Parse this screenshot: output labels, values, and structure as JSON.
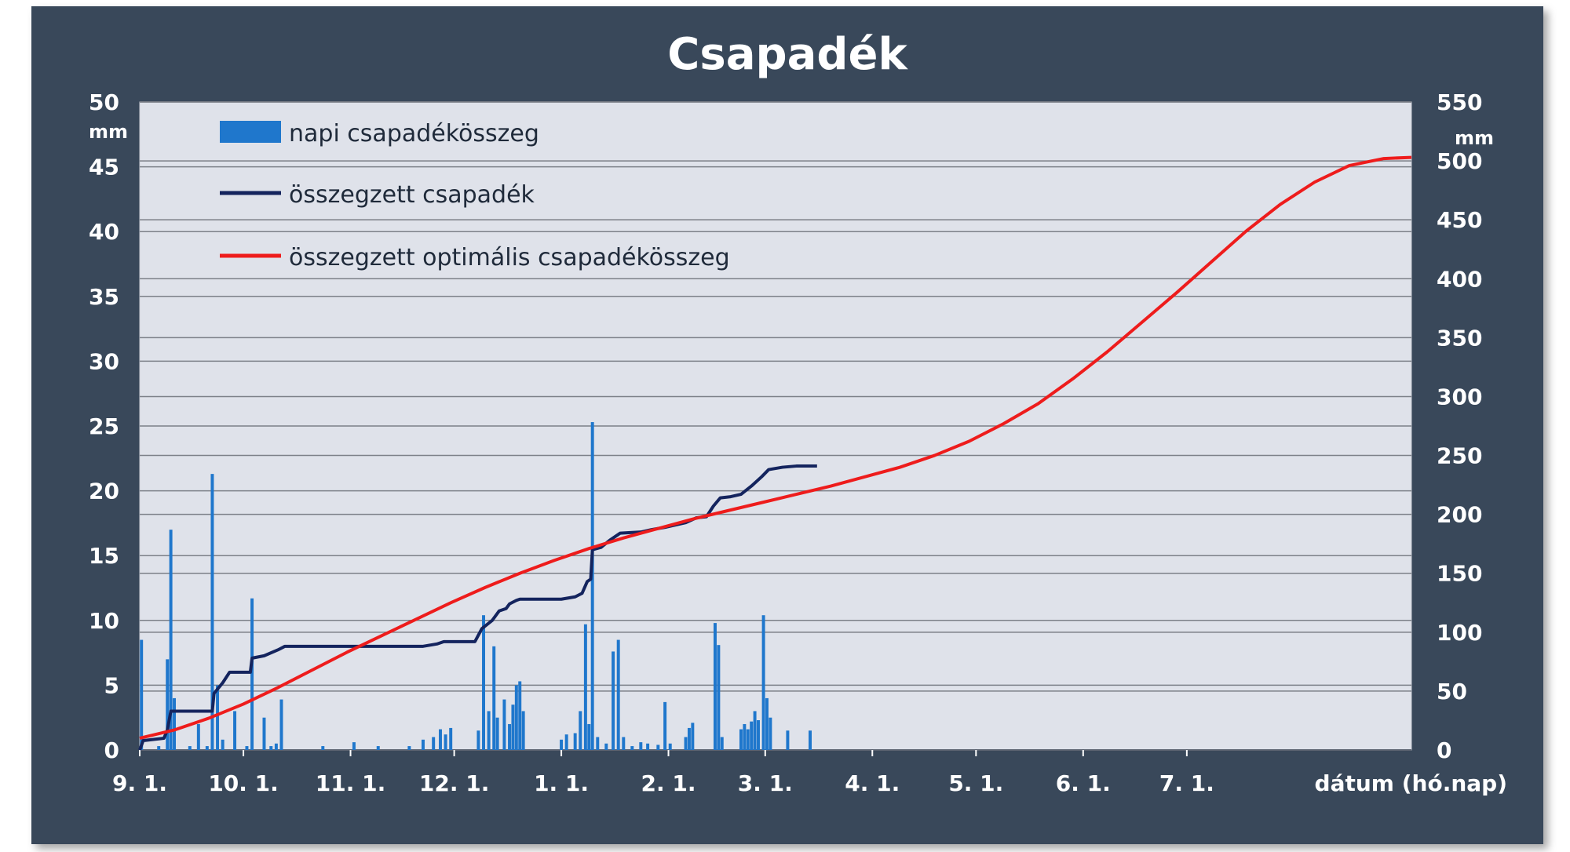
{
  "chart_data": {
    "type": "bar+line",
    "title": "Csapadék",
    "xlabel": "dátum (hó.nap)",
    "y_left": {
      "unit": "mm",
      "range": [
        0,
        50
      ],
      "ticks": [
        "0",
        "5",
        "10",
        "15",
        "20",
        "25",
        "30",
        "35",
        "40",
        "45",
        "50"
      ]
    },
    "y_right": {
      "unit": "mm",
      "range": [
        0,
        550
      ],
      "ticks": [
        "0",
        "50",
        "100",
        "150",
        "200",
        "250",
        "300",
        "350",
        "400",
        "450",
        "500",
        "550"
      ]
    },
    "x_ticks": [
      "9. 1.",
      "10. 1.",
      "11. 1.",
      "12. 1.",
      "1. 1.",
      "2. 1.",
      "3. 1.",
      "4. 1.",
      "5. 1.",
      "6. 1.",
      "7. 1."
    ],
    "grid": true,
    "legend_placement": "top-left",
    "colors": {
      "frame": "#39485a",
      "plot": "#dfe2ea",
      "bars": "#1f77cc",
      "sum": "#14245e",
      "optimal": "#ee1c1c",
      "grid": "#7c8088"
    },
    "series": [
      {
        "name": "napi csapadékösszeg",
        "type": "bar",
        "axis": "left",
        "points": [
          [
            0.5,
            8.5
          ],
          [
            5.5,
            0.3
          ],
          [
            8,
            7
          ],
          [
            9,
            17
          ],
          [
            10,
            4
          ],
          [
            14.5,
            0.3
          ],
          [
            17,
            2
          ],
          [
            19.5,
            0.3
          ],
          [
            21,
            21.3
          ],
          [
            22.5,
            5
          ],
          [
            24,
            0.8
          ],
          [
            27.5,
            3
          ],
          [
            31,
            0.3
          ],
          [
            32.5,
            11.7
          ],
          [
            36,
            2.5
          ],
          [
            38,
            0.3
          ],
          [
            39.5,
            0.5
          ],
          [
            41,
            3.9
          ],
          [
            53,
            0.3
          ],
          [
            62,
            0.6
          ],
          [
            69,
            0.3
          ],
          [
            78,
            0.3
          ],
          [
            82,
            0.8
          ],
          [
            85,
            1
          ],
          [
            87,
            1.6
          ],
          [
            88.5,
            1.2
          ],
          [
            90,
            1.7
          ],
          [
            98,
            1.5
          ],
          [
            99.5,
            10.4
          ],
          [
            101,
            3
          ],
          [
            102.5,
            8
          ],
          [
            103.5,
            2.5
          ],
          [
            105.5,
            3.9
          ],
          [
            107,
            2
          ],
          [
            108,
            3.5
          ],
          [
            109,
            5
          ],
          [
            110,
            5.3
          ],
          [
            111,
            3
          ],
          [
            122,
            0.8
          ],
          [
            123.5,
            1.2
          ],
          [
            126,
            1.3
          ],
          [
            127.5,
            3
          ],
          [
            129,
            9.7
          ],
          [
            130,
            2
          ],
          [
            131,
            25.3
          ],
          [
            132.5,
            1
          ],
          [
            135,
            0.5
          ],
          [
            137,
            7.6
          ],
          [
            138.5,
            8.5
          ],
          [
            140,
            1
          ],
          [
            142.5,
            0.3
          ],
          [
            145,
            0.6
          ],
          [
            147,
            0.5
          ],
          [
            150,
            0.4
          ],
          [
            152,
            3.7
          ],
          [
            153.5,
            0.5
          ],
          [
            158,
            1
          ],
          [
            159,
            1.7
          ],
          [
            160,
            2.1
          ],
          [
            166.5,
            9.8
          ],
          [
            167.5,
            8.1
          ],
          [
            168.5,
            1
          ],
          [
            174,
            1.6
          ],
          [
            175,
            2
          ],
          [
            176,
            1.6
          ],
          [
            177,
            2.2
          ],
          [
            178,
            3
          ],
          [
            179,
            2.3
          ],
          [
            180.5,
            10.4
          ],
          [
            181.5,
            4
          ],
          [
            182.5,
            2.5
          ],
          [
            187.5,
            1.5
          ],
          [
            194,
            1.5
          ]
        ]
      },
      {
        "name": "összegzett csapadék",
        "type": "line",
        "axis": "right",
        "points": [
          [
            0,
            0
          ],
          [
            1,
            8
          ],
          [
            7,
            10
          ],
          [
            8,
            17
          ],
          [
            9,
            33
          ],
          [
            21,
            33
          ],
          [
            21.5,
            48
          ],
          [
            24,
            57
          ],
          [
            26,
            66
          ],
          [
            32,
            66
          ],
          [
            32.5,
            78
          ],
          [
            36,
            80
          ],
          [
            40,
            85
          ],
          [
            42,
            88
          ],
          [
            82,
            88
          ],
          [
            86,
            90
          ],
          [
            88,
            92
          ],
          [
            97,
            92
          ],
          [
            99,
            103
          ],
          [
            102,
            110
          ],
          [
            104,
            118
          ],
          [
            106,
            120
          ],
          [
            107,
            124
          ],
          [
            109,
            127
          ],
          [
            110,
            128
          ],
          [
            122,
            128
          ],
          [
            126,
            130
          ],
          [
            128,
            133
          ],
          [
            129.5,
            143
          ],
          [
            130.5,
            145
          ],
          [
            131,
            170
          ],
          [
            133.5,
            172
          ],
          [
            136,
            178
          ],
          [
            137.5,
            181
          ],
          [
            139,
            184
          ],
          [
            145,
            185
          ],
          [
            148,
            187
          ],
          [
            152,
            189
          ],
          [
            155,
            191
          ],
          [
            158,
            193
          ],
          [
            161,
            197
          ],
          [
            164,
            198
          ],
          [
            166,
            207
          ],
          [
            168,
            214
          ],
          [
            171,
            215
          ],
          [
            174,
            217
          ],
          [
            177,
            224
          ],
          [
            180,
            232
          ],
          [
            182,
            238
          ],
          [
            186,
            240
          ],
          [
            190,
            241
          ],
          [
            196,
            241
          ]
        ]
      },
      {
        "name": "összegzett optimális  csapadékösszeg",
        "type": "line",
        "axis": "right",
        "points": [
          [
            0,
            10
          ],
          [
            10,
            17
          ],
          [
            20,
            27
          ],
          [
            30,
            39
          ],
          [
            40,
            53
          ],
          [
            50,
            68
          ],
          [
            60,
            83
          ],
          [
            70,
            97
          ],
          [
            80,
            111
          ],
          [
            90,
            125
          ],
          [
            100,
            138
          ],
          [
            110,
            150
          ],
          [
            120,
            161
          ],
          [
            130,
            171
          ],
          [
            140,
            180
          ],
          [
            150,
            188
          ],
          [
            160,
            196
          ],
          [
            170,
            203
          ],
          [
            180,
            210
          ],
          [
            190,
            217
          ],
          [
            200,
            224
          ],
          [
            210,
            232
          ],
          [
            220,
            240
          ],
          [
            230,
            250
          ],
          [
            240,
            262
          ],
          [
            250,
            277
          ],
          [
            260,
            294
          ],
          [
            270,
            315
          ],
          [
            280,
            338
          ],
          [
            290,
            363
          ],
          [
            300,
            388
          ],
          [
            310,
            414
          ],
          [
            320,
            440
          ],
          [
            330,
            463
          ],
          [
            340,
            482
          ],
          [
            350,
            496
          ],
          [
            360,
            502
          ],
          [
            368,
            503
          ]
        ]
      }
    ]
  }
}
